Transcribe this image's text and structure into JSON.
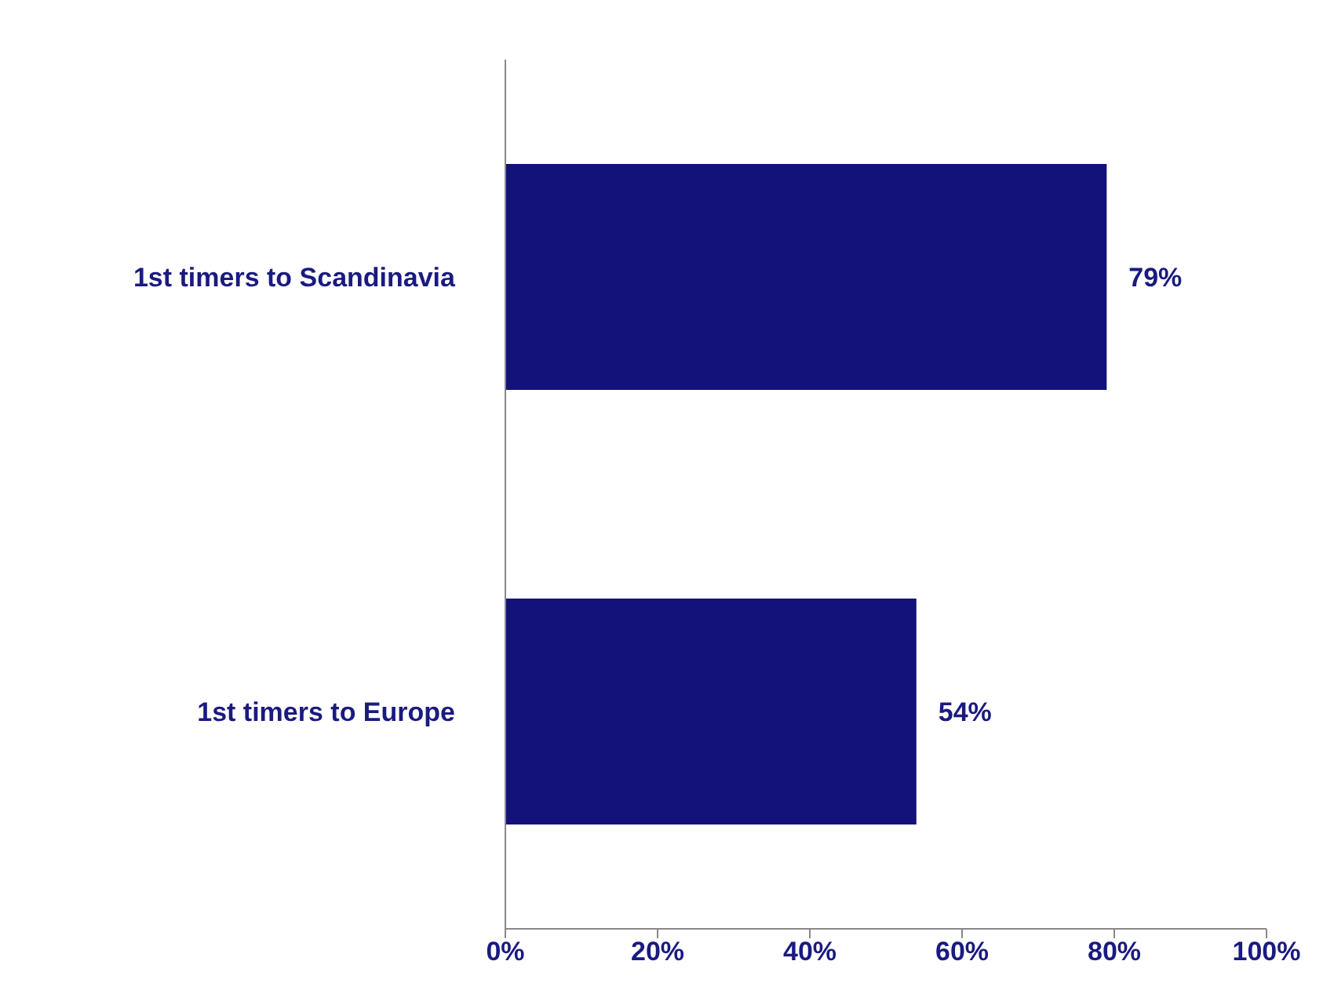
{
  "chart_data": {
    "type": "bar",
    "orientation": "horizontal",
    "categories": [
      "1st timers to Scandinavia",
      "1st timers to Europe"
    ],
    "values": [
      79,
      54
    ],
    "color": "#12127a",
    "value_labels": [
      "79%",
      "54%"
    ],
    "xlim": [
      0,
      100
    ],
    "xticks": [
      {
        "value": 0,
        "label": "0%"
      },
      {
        "value": 20,
        "label": "20%"
      },
      {
        "value": 40,
        "label": "40%"
      },
      {
        "value": 60,
        "label": "60%"
      },
      {
        "value": 80,
        "label": "80%"
      },
      {
        "value": 100,
        "label": "100%"
      }
    ]
  }
}
